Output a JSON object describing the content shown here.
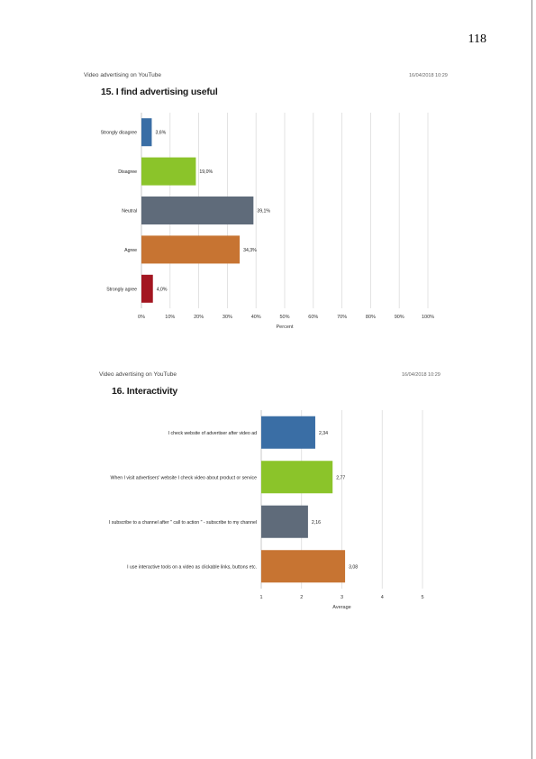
{
  "page_number": "118",
  "sections": [
    {
      "source": "Video advertising on YouTube",
      "timestamp": "16/04/2018 10:29",
      "title": "15. I find advertising useful"
    },
    {
      "source": "Video advertising on YouTube",
      "timestamp": "16/04/2018 10:29",
      "title": "16. Interactivity"
    }
  ],
  "chart_data": [
    {
      "type": "bar",
      "orientation": "horizontal",
      "title": "15. I find advertising useful",
      "xlabel": "Percent",
      "xlim": [
        0,
        100
      ],
      "ticks": [
        "0%",
        "10%",
        "20%",
        "30%",
        "40%",
        "50%",
        "60%",
        "70%",
        "80%",
        "90%",
        "100%"
      ],
      "categories": [
        "Strongly disagree",
        "Disagree",
        "Neutral",
        "Agree",
        "Strongly agree"
      ],
      "values": [
        3.6,
        19.0,
        39.1,
        34.3,
        4.0
      ],
      "labels": [
        "3,6%",
        "19,0%",
        "39,1%",
        "34,3%",
        "4,0%"
      ],
      "colors": [
        "#3a6ea5",
        "#8bc42a",
        "#5f6b7a",
        "#c77432",
        "#a31621"
      ],
      "grid": true
    },
    {
      "type": "bar",
      "orientation": "horizontal",
      "title": "16. Interactivity",
      "xlabel": "Average",
      "xlim": [
        1,
        5
      ],
      "ticks": [
        "1",
        "2",
        "3",
        "4",
        "5"
      ],
      "categories": [
        "I check website of advertiser after video ad",
        "When I visit advertisers' website I check video about product or service",
        "I subscribe to a channel after \" call to action \" - subscribe to my channel",
        "I use interactive tools on a video as clickable links, buttons etc."
      ],
      "values": [
        2.34,
        2.77,
        2.16,
        3.08
      ],
      "labels": [
        "2,34",
        "2,77",
        "2,16",
        "3,08"
      ],
      "colors": [
        "#3a6ea5",
        "#8bc42a",
        "#5f6b7a",
        "#c77432"
      ],
      "grid": true
    }
  ]
}
